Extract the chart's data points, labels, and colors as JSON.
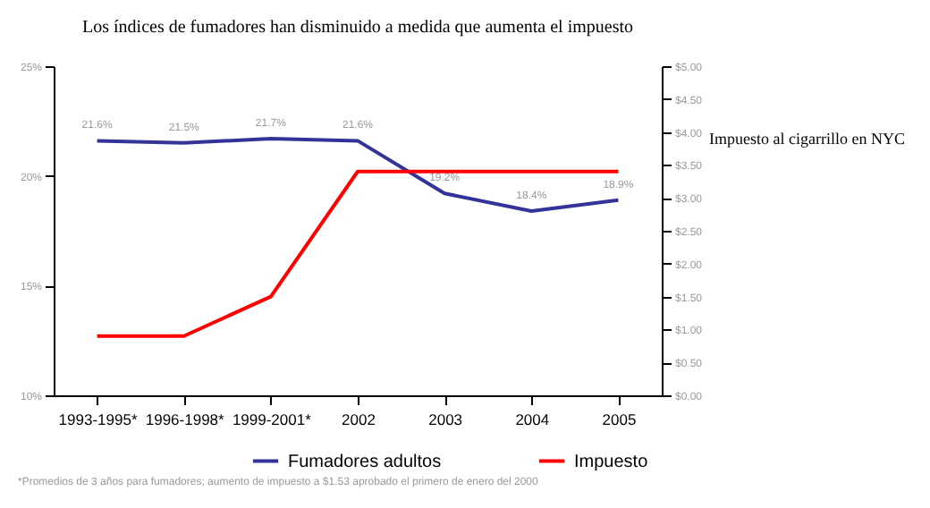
{
  "chart_data": {
    "type": "line",
    "title": "Los índices de fumadores han disminuido a medida que aumenta el impuesto",
    "y2label": "Impuesto al cigarrillo en NYC",
    "categories": [
      "1993-1995*",
      "1996-1998*",
      "1999-2001*",
      "2002",
      "2003",
      "2004",
      "2005"
    ],
    "series": [
      {
        "name": "Fumadores adultos",
        "color": "#333399",
        "values": [
          21.6,
          21.5,
          21.7,
          21.6,
          19.2,
          18.4,
          18.9
        ],
        "value_labels": [
          "21.6%",
          "21.5%",
          "21.7%",
          "21.6%",
          "19.2%",
          "18.4%",
          "18.9%"
        ]
      },
      {
        "name": "Impuesto",
        "color": "#ff0000",
        "axis": "y2",
        "values": [
          0.9,
          0.9,
          1.5,
          3.4,
          3.4,
          3.4,
          3.4
        ]
      }
    ],
    "ylim": [
      10,
      25
    ],
    "yticks": [
      {
        "value": 10,
        "label": "10%"
      },
      {
        "value": 15,
        "label": "15%"
      },
      {
        "value": 20,
        "label": "20%"
      },
      {
        "value": 25,
        "label": "25%"
      }
    ],
    "y2lim": [
      0,
      5
    ],
    "y2ticks": [
      {
        "value": 0,
        "label": "$0.00"
      },
      {
        "value": 0.5,
        "label": "$0.50"
      },
      {
        "value": 1,
        "label": "$1.00"
      },
      {
        "value": 1.5,
        "label": "$1.50"
      },
      {
        "value": 2,
        "label": "$2.00"
      },
      {
        "value": 2.5,
        "label": "$2.50"
      },
      {
        "value": 3,
        "label": "$3.00"
      },
      {
        "value": 3.5,
        "label": "$3.50"
      },
      {
        "value": 4,
        "label": "$4.00"
      },
      {
        "value": 4.5,
        "label": "$4.50"
      },
      {
        "value": 5,
        "label": "$5.00"
      }
    ],
    "legend": "bottom",
    "grid": false,
    "annotations": [
      "*Promedios de 3 años para fumadores; aumento de impuesto a $1.53 aprobado el primero de enero del 2000"
    ]
  }
}
